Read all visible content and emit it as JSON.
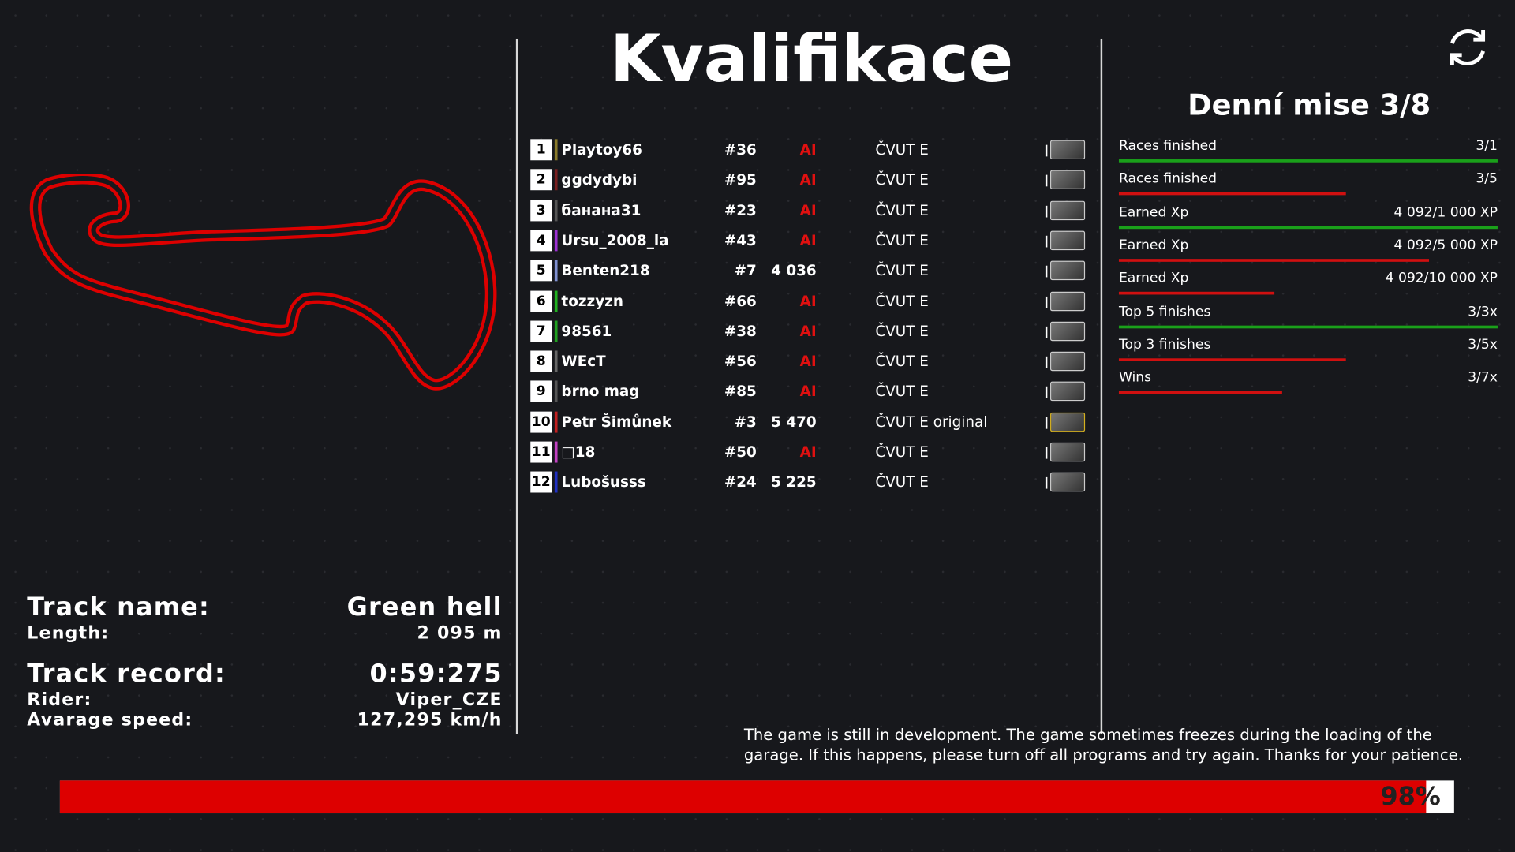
{
  "title": "Kvalifikace",
  "leaderboard": [
    {
      "position": 1,
      "name": "Playtoy66",
      "color": "#8a7a2a",
      "number": "#36",
      "score": "AI",
      "car": "ČVUT E"
    },
    {
      "position": 2,
      "name": "ggdydybi",
      "color": "#7a2020",
      "number": "#95",
      "score": "AI",
      "car": "ČVUT E"
    },
    {
      "position": 3,
      "name": "банана31",
      "color": "#555555",
      "number": "#23",
      "score": "AI",
      "car": "ČVUT E"
    },
    {
      "position": 4,
      "name": "Ursu_2008_la",
      "color": "#9b30d0",
      "number": "#43",
      "score": "AI",
      "car": "ČVUT E"
    },
    {
      "position": 5,
      "name": "Benten218",
      "color": "#8090d0",
      "number": "#7",
      "score": "4 036",
      "car": "ČVUT E"
    },
    {
      "position": 6,
      "name": "tozzyzn",
      "color": "#20b020",
      "number": "#66",
      "score": "AI",
      "car": "ČVUT E"
    },
    {
      "position": 7,
      "name": "98561",
      "color": "#20a020",
      "number": "#38",
      "score": "AI",
      "car": "ČVUT E"
    },
    {
      "position": 8,
      "name": "WEcT",
      "color": "#666666",
      "number": "#56",
      "score": "AI",
      "car": "ČVUT E"
    },
    {
      "position": 9,
      "name": "brno mag",
      "color": "#555555",
      "number": "#85",
      "score": "AI",
      "car": "ČVUT E"
    },
    {
      "position": 10,
      "name": "Petr Šimůnek",
      "color": "#c02020",
      "number": "#3",
      "score": "5 470",
      "car": "ČVUT E original"
    },
    {
      "position": 11,
      "name": "□18",
      "color": "#c040c0",
      "number": "#50",
      "score": "AI",
      "car": "ČVUT E"
    },
    {
      "position": 12,
      "name": "Lubošusss",
      "color": "#2030c0",
      "number": "#24",
      "score": "5 225",
      "car": "ČVUT E"
    }
  ],
  "missions": {
    "title": "Denní mise 3/8",
    "items": [
      {
        "label": "Races finished",
        "value": "3/1",
        "progress": 1,
        "color": "#1aa01a"
      },
      {
        "label": "Races finished",
        "value": "3/5",
        "progress": 0.6,
        "color": "#d01010"
      },
      {
        "label": "Earned Xp",
        "value": "4 092/1 000 XP",
        "progress": 1,
        "color": "#1aa01a"
      },
      {
        "label": "Earned Xp",
        "value": "4 092/5 000 XP",
        "progress": 0.82,
        "color": "#d01010"
      },
      {
        "label": "Earned Xp",
        "value": "4 092/10 000 XP",
        "progress": 0.41,
        "color": "#d01010"
      },
      {
        "label": "Top 5 finishes",
        "value": "3/3x",
        "progress": 1,
        "color": "#1aa01a"
      },
      {
        "label": "Top 3 finishes",
        "value": "3/5x",
        "progress": 0.6,
        "color": "#d01010"
      },
      {
        "label": "Wins",
        "value": "3/7x",
        "progress": 0.43,
        "color": "#d01010"
      }
    ]
  },
  "track": {
    "name_label": "Track name:",
    "name": "Green hell",
    "length_label": "Length:",
    "length": "2 095 m",
    "record_label": "Track record:",
    "record": "0:59:275",
    "rider_label": "Rider:",
    "rider": "Viper_CZE",
    "speed_label": "Avarage speed:",
    "speed": "127,295 km/h"
  },
  "notice": "The game is still in development. The game sometimes freezes during the loading of the garage. If this happens, please turn off all programs and try again. Thanks for your patience.",
  "loading": {
    "value": 98,
    "label": "98%"
  }
}
